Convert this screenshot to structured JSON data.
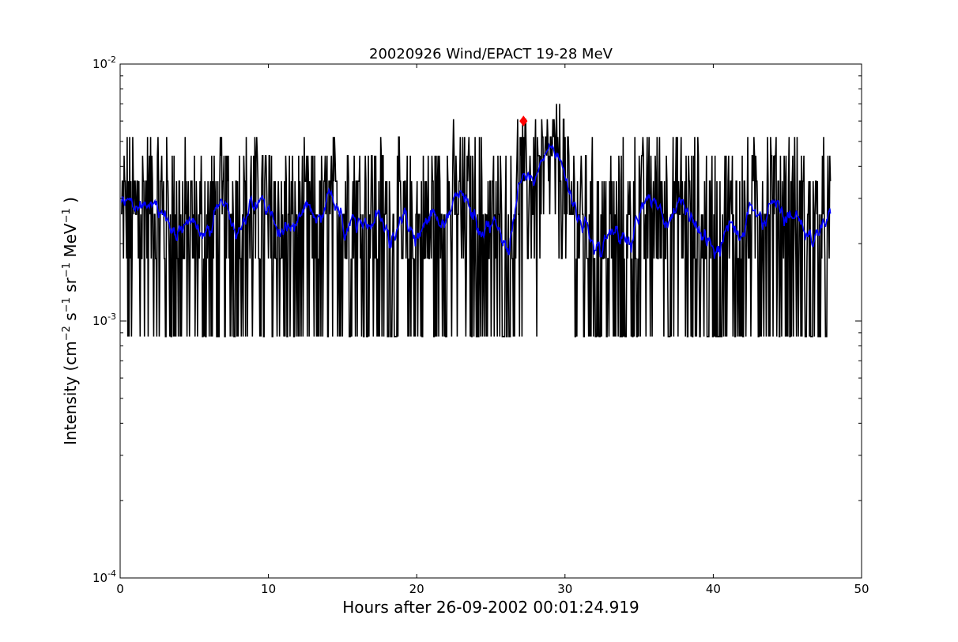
{
  "chart_data": {
    "type": "line",
    "title": "20020926 Wind/EPACT 19-28 MeV",
    "xlabel": "Hours after 26-09-2002 00:01:24.919",
    "ylabel_main": "Intensity (cm",
    "ylabel_parts": [
      {
        "text": "Intensity (cm",
        "sup": false
      },
      {
        "text": "−2",
        "sup": true
      },
      {
        "text": " s",
        "sup": false
      },
      {
        "text": "−1",
        "sup": true
      },
      {
        "text": " sr",
        "sup": false
      },
      {
        "text": "−1",
        "sup": true
      },
      {
        "text": " MeV",
        "sup": false
      },
      {
        "text": "−1",
        "sup": true
      },
      {
        "text": " )",
        "sup": false
      }
    ],
    "xlim": [
      0,
      50
    ],
    "ylim": [
      0.0001,
      0.01
    ],
    "yscale": "log",
    "xticks": [
      0,
      10,
      20,
      30,
      40,
      50
    ],
    "xtick_labels": [
      "0",
      "10",
      "20",
      "30",
      "40",
      "50"
    ],
    "yticks": [
      {
        "value": 0.01,
        "base": "10",
        "exp": "-2"
      },
      {
        "value": 0.001,
        "base": "10",
        "exp": "-3"
      },
      {
        "value": 0.0001,
        "base": "10",
        "exp": "-4"
      }
    ],
    "grid": false,
    "legend": "none",
    "series": [
      {
        "color": "#000000",
        "style": "raw-counts",
        "x_range": [
          0.1,
          47.9
        ],
        "levels": [
          0.00087,
          0.00175,
          0.0026,
          0.0035,
          0.0044,
          0.0052,
          0.0061,
          0.007,
          0.0079,
          0.0088,
          0.0096
        ]
      },
      {
        "color": "#0000ff",
        "style": "smoothed",
        "x_range": [
          0.1,
          47.9
        ],
        "typical_range": [
          0.0015,
          0.0058
        ]
      }
    ],
    "marker": {
      "x": 27.2,
      "y": 0.006,
      "color": "#ff0000",
      "shape": "diamond"
    }
  }
}
